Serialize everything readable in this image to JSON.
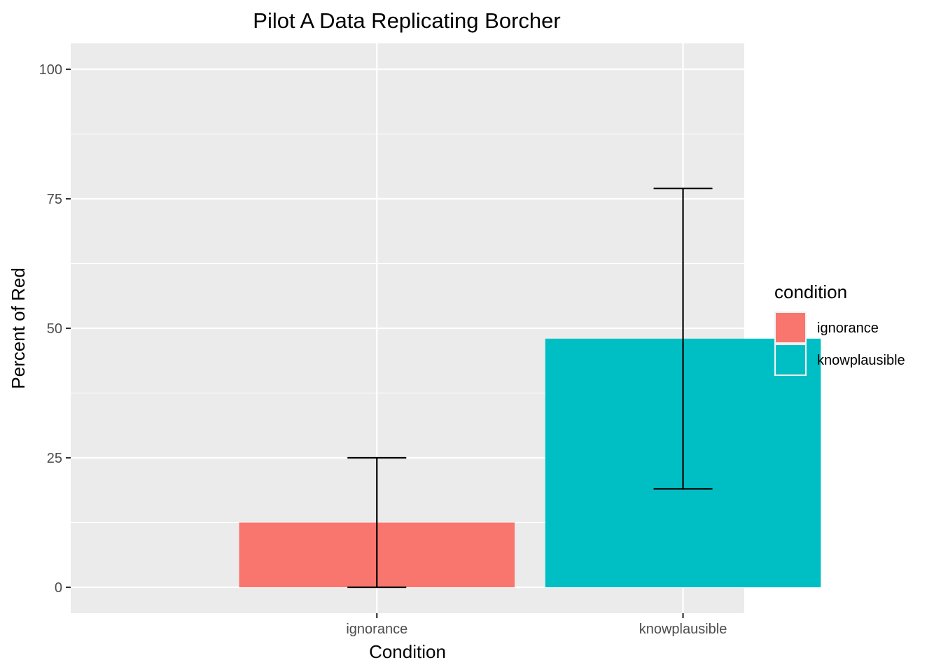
{
  "chart_data": {
    "type": "bar",
    "title": "Pilot A Data Replicating Borcher",
    "xlabel": "Condition",
    "ylabel": "Percent of Red",
    "categories": [
      "ignorance",
      "knowplausible"
    ],
    "values": [
      12.5,
      48
    ],
    "error_bars": [
      {
        "low": 0,
        "high": 25
      },
      {
        "low": 19,
        "high": 77
      }
    ],
    "colors": [
      "#F8766D",
      "#00BFC4"
    ],
    "ylim": [
      -5,
      105
    ],
    "yticks": [
      0,
      25,
      50,
      75,
      100
    ],
    "ytick_labels": [
      "0",
      "25",
      "50",
      "75",
      "100"
    ],
    "grid": true,
    "panel_background": "#EBEBEB",
    "legend": {
      "title": "condition",
      "position": "right",
      "entries": [
        "ignorance",
        "knowplausible"
      ]
    }
  }
}
